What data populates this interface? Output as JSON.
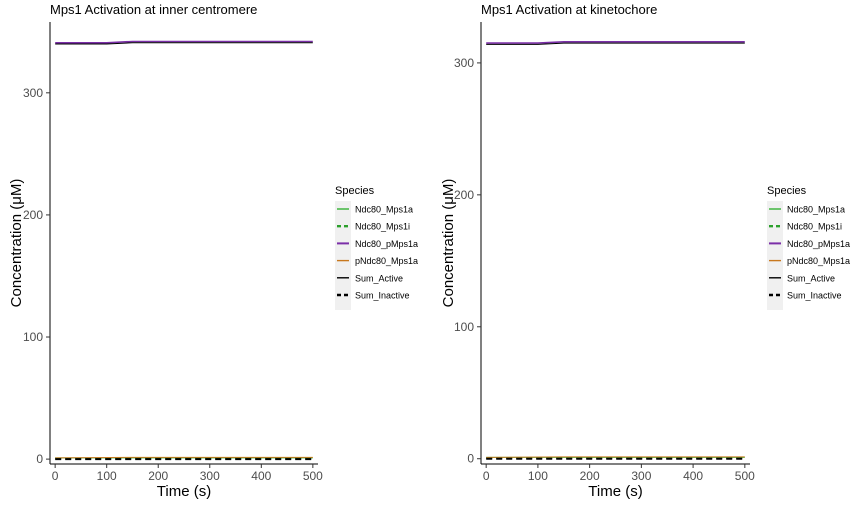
{
  "chart_data": [
    {
      "type": "line",
      "title": "Mps1 Activation at inner centromere",
      "xlabel": "Time (s)",
      "ylabel": "Concentration (μM)",
      "xlim": [
        -10,
        510
      ],
      "ylim": [
        -4,
        358
      ],
      "xticks": [
        0,
        100,
        200,
        300,
        400,
        500
      ],
      "yticks": [
        0,
        100,
        200,
        300
      ],
      "grid": false,
      "legend_title": "Species",
      "legend_position": "right",
      "series": [
        {
          "name": "Ndc80_Mps1a",
          "color": "#33b233",
          "dash": "solid",
          "width": 1.0,
          "x": [
            0,
            500
          ],
          "y": [
            1.0,
            1.0
          ]
        },
        {
          "name": "Ndc80_Mps1i",
          "color": "#2ca02c",
          "dash": "dashed",
          "width": 2.0,
          "x": [
            0,
            500
          ],
          "y": [
            0.5,
            0.5
          ]
        },
        {
          "name": "Ndc80_pMps1a",
          "color": "#7b2fa8",
          "dash": "solid",
          "width": 1.6,
          "x": [
            0,
            100,
            150,
            500
          ],
          "y": [
            341,
            341,
            342,
            342
          ]
        },
        {
          "name": "pNdc80_Mps1a",
          "color": "#c8781e",
          "dash": "solid",
          "width": 1.0,
          "x": [
            0,
            150,
            500
          ],
          "y": [
            1.0,
            1.4,
            1.4
          ]
        },
        {
          "name": "Sum_Active",
          "color": "#000000",
          "dash": "solid",
          "width": 1.0,
          "x": [
            0,
            100,
            150,
            500
          ],
          "y": [
            340,
            340,
            341,
            341
          ]
        },
        {
          "name": "Sum_Inactive",
          "color": "#000000",
          "dash": "dashed",
          "width": 2.0,
          "x": [
            0,
            500
          ],
          "y": [
            0,
            0
          ]
        }
      ]
    },
    {
      "type": "line",
      "title": "Mps1 Activation at kinetochore",
      "xlabel": "Time (s)",
      "ylabel": "Concentration (μM)",
      "xlim": [
        -10,
        510
      ],
      "ylim": [
        -4,
        331
      ],
      "xticks": [
        0,
        100,
        200,
        300,
        400,
        500
      ],
      "yticks": [
        0,
        100,
        200,
        300
      ],
      "grid": false,
      "legend_title": "Species",
      "legend_position": "right",
      "series": [
        {
          "name": "Ndc80_Mps1a",
          "color": "#33b233",
          "dash": "solid",
          "width": 1.0,
          "x": [
            0,
            500
          ],
          "y": [
            1.0,
            1.0
          ]
        },
        {
          "name": "Ndc80_Mps1i",
          "color": "#2ca02c",
          "dash": "dashed",
          "width": 2.0,
          "x": [
            0,
            500
          ],
          "y": [
            0.5,
            0.5
          ]
        },
        {
          "name": "Ndc80_pMps1a",
          "color": "#7b2fa8",
          "dash": "solid",
          "width": 1.6,
          "x": [
            0,
            100,
            150,
            500
          ],
          "y": [
            315,
            315,
            316,
            316
          ]
        },
        {
          "name": "pNdc80_Mps1a",
          "color": "#c8781e",
          "dash": "solid",
          "width": 1.0,
          "x": [
            0,
            150,
            500
          ],
          "y": [
            1.0,
            1.4,
            1.4
          ]
        },
        {
          "name": "Sum_Active",
          "color": "#000000",
          "dash": "solid",
          "width": 1.0,
          "x": [
            0,
            100,
            150,
            500
          ],
          "y": [
            314,
            314,
            315,
            315
          ]
        },
        {
          "name": "Sum_Inactive",
          "color": "#000000",
          "dash": "dashed",
          "width": 2.0,
          "x": [
            0,
            500
          ],
          "y": [
            0,
            0
          ]
        }
      ]
    }
  ]
}
